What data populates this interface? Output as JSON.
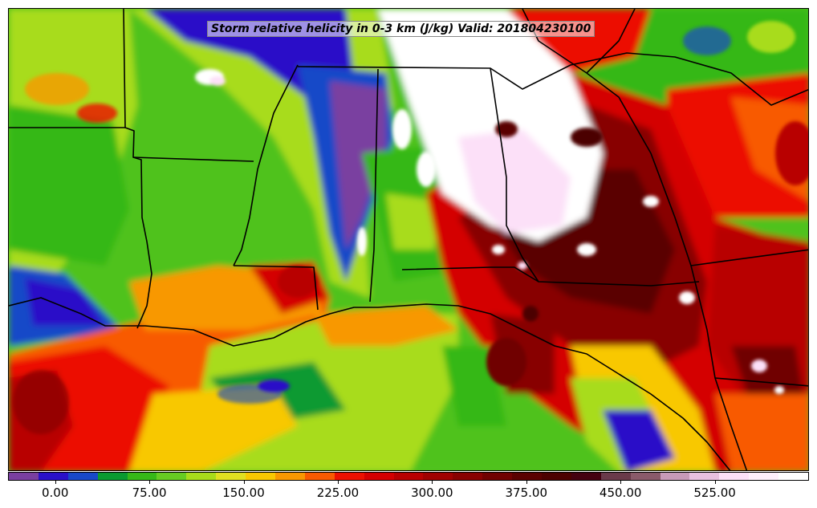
{
  "title": "Storm relative helicity in 0-3 km (J/kg) Valid: 201804230100",
  "colorbar": {
    "colors": [
      "#7a3fa0",
      "#2a10c8",
      "#1848c8",
      "#0a9a30",
      "#36b818",
      "#66cc22",
      "#a8dc1a",
      "#e0e020",
      "#f8c800",
      "#f89800",
      "#f85a00",
      "#ec1000",
      "#d40000",
      "#b80000",
      "#a00000",
      "#880000",
      "#700000",
      "#5a0000",
      "#4c0000",
      "#440010",
      "#6a3a4a",
      "#8a5a6a",
      "#c89ab8",
      "#e8c0e0",
      "#fce0f8",
      "#fff0fc",
      "#ffffff"
    ],
    "tick_labels": [
      "0.00",
      "75.00",
      "150.00",
      "225.00",
      "300.00",
      "375.00",
      "450.00",
      "525.00"
    ],
    "tick_values": [
      0,
      75,
      150,
      225,
      300,
      375,
      450,
      525
    ],
    "value_range": [
      -37.5,
      600
    ]
  },
  "map": {
    "units": "J/kg",
    "field": "storm relative helicity 0-3 km"
  }
}
